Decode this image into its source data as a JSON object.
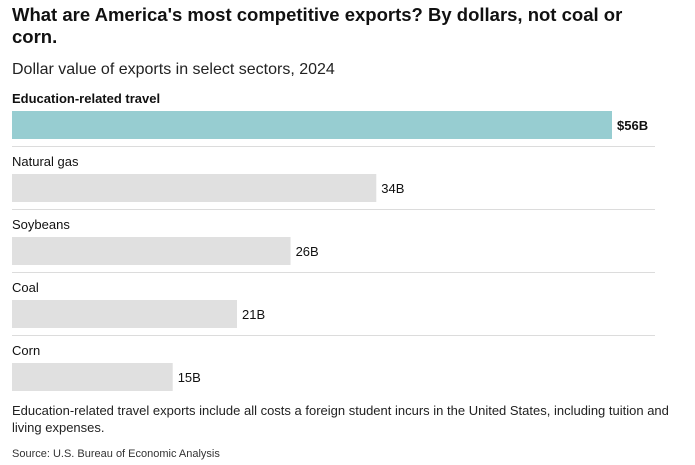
{
  "title": "What are America's most competitive exports? By dollars, not coal or corn.",
  "subtitle": "Dollar value of exports in select sectors, 2024",
  "note": "Education-related travel exports include all costs a foreign student incurs in the United States, including tuition and living expenses.",
  "source": "Source: U.S. Bureau of Economic Analysis",
  "colors": {
    "highlight": "#97cdd1",
    "default_bar": "#e0e0e0",
    "divider": "#dcdcdc"
  },
  "chart_data": {
    "type": "bar",
    "orientation": "horizontal",
    "unit": "billions of US dollars",
    "categories": [
      "Education-related travel",
      "Natural gas",
      "Soybeans",
      "Coal",
      "Corn"
    ],
    "values": [
      56,
      34,
      26,
      21,
      15
    ],
    "value_labels": [
      "$56B",
      "34B",
      "26B",
      "21B",
      "15B"
    ],
    "highlight": "Education-related travel",
    "xlim": [
      0,
      56
    ],
    "grid": false
  }
}
